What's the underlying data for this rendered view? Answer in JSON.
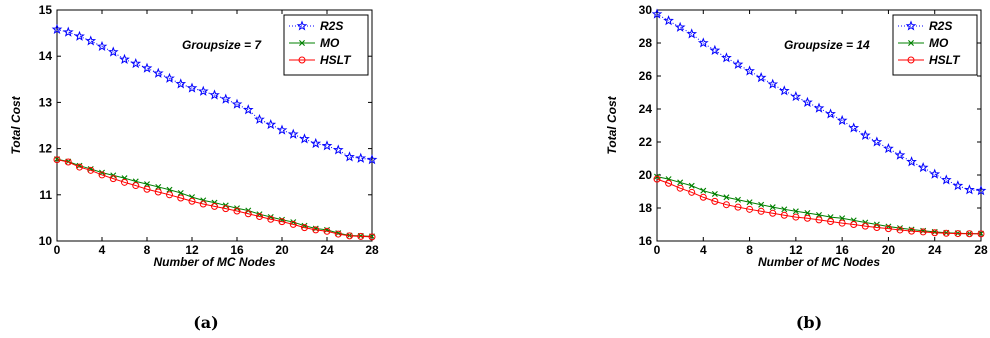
{
  "chart_data": [
    {
      "type": "line",
      "caption": "(a)",
      "annotation": "Groupsize = 7",
      "xlabel": "Number of MC Nodes",
      "ylabel": "Total Cost",
      "xlim": [
        0,
        28
      ],
      "ylim": [
        10,
        15
      ],
      "xticks": [
        0,
        4,
        8,
        12,
        16,
        20,
        24,
        28
      ],
      "yticks": [
        10,
        11,
        12,
        13,
        14,
        15
      ],
      "legend_position": "top-right",
      "x": [
        0,
        1,
        2,
        3,
        4,
        5,
        6,
        7,
        8,
        9,
        10,
        11,
        12,
        13,
        14,
        15,
        16,
        17,
        18,
        19,
        20,
        21,
        22,
        23,
        24,
        25,
        26,
        27,
        28
      ],
      "series": [
        {
          "name": "R2S",
          "color": "#0000ff",
          "style": "dotted",
          "marker": "star",
          "values": [
            14.58,
            14.52,
            14.43,
            14.33,
            14.21,
            14.09,
            13.93,
            13.84,
            13.74,
            13.63,
            13.52,
            13.4,
            13.31,
            13.24,
            13.16,
            13.07,
            12.96,
            12.84,
            12.63,
            12.52,
            12.4,
            12.31,
            12.21,
            12.11,
            12.06,
            11.97,
            11.82,
            11.79,
            11.76
          ]
        },
        {
          "name": "MO",
          "color": "#008000",
          "style": "solid",
          "marker": "x",
          "values": [
            11.77,
            11.72,
            11.63,
            11.56,
            11.48,
            11.42,
            11.36,
            11.29,
            11.23,
            11.17,
            11.11,
            11.04,
            10.95,
            10.88,
            10.83,
            10.77,
            10.71,
            10.66,
            10.58,
            10.52,
            10.46,
            10.41,
            10.33,
            10.27,
            10.24,
            10.17,
            10.12,
            10.11,
            10.1
          ]
        },
        {
          "name": "HSLT",
          "color": "#ff0000",
          "style": "solid",
          "marker": "circle",
          "values": [
            11.76,
            11.71,
            11.6,
            11.53,
            11.43,
            11.35,
            11.27,
            11.2,
            11.12,
            11.06,
            11.0,
            10.93,
            10.86,
            10.8,
            10.75,
            10.7,
            10.65,
            10.59,
            10.53,
            10.47,
            10.42,
            10.36,
            10.29,
            10.24,
            10.21,
            10.15,
            10.11,
            10.1,
            10.09
          ]
        }
      ]
    },
    {
      "type": "line",
      "caption": "(b)",
      "annotation": "Groupsize = 14",
      "xlabel": "Number of MC Nodes",
      "ylabel": "Total Cost",
      "xlim": [
        0,
        28
      ],
      "ylim": [
        16,
        30
      ],
      "xticks": [
        0,
        4,
        8,
        12,
        16,
        20,
        24,
        28
      ],
      "yticks": [
        16,
        18,
        20,
        22,
        24,
        26,
        28,
        30
      ],
      "legend_position": "top-right",
      "x": [
        0,
        1,
        2,
        3,
        4,
        5,
        6,
        7,
        8,
        9,
        10,
        11,
        12,
        13,
        14,
        15,
        16,
        17,
        18,
        19,
        20,
        21,
        22,
        23,
        24,
        25,
        26,
        27,
        28
      ],
      "series": [
        {
          "name": "R2S",
          "color": "#0000ff",
          "style": "dotted",
          "marker": "star",
          "values": [
            29.75,
            29.35,
            28.95,
            28.55,
            28.0,
            27.55,
            27.1,
            26.7,
            26.3,
            25.9,
            25.5,
            25.1,
            24.75,
            24.4,
            24.05,
            23.7,
            23.3,
            22.85,
            22.4,
            22.0,
            21.6,
            21.2,
            20.8,
            20.45,
            20.05,
            19.7,
            19.35,
            19.1,
            19.05
          ]
        },
        {
          "name": "MO",
          "color": "#008000",
          "style": "solid",
          "marker": "x",
          "values": [
            19.9,
            19.75,
            19.55,
            19.35,
            19.05,
            18.85,
            18.65,
            18.5,
            18.35,
            18.2,
            18.05,
            17.92,
            17.8,
            17.7,
            17.58,
            17.45,
            17.38,
            17.25,
            17.12,
            17.0,
            16.88,
            16.78,
            16.7,
            16.62,
            16.55,
            16.5,
            16.47,
            16.45,
            16.45
          ]
        },
        {
          "name": "HSLT",
          "color": "#ff0000",
          "style": "solid",
          "marker": "circle",
          "values": [
            19.75,
            19.5,
            19.2,
            18.95,
            18.65,
            18.4,
            18.2,
            18.05,
            17.92,
            17.8,
            17.68,
            17.56,
            17.45,
            17.38,
            17.28,
            17.18,
            17.08,
            17.0,
            16.9,
            16.82,
            16.75,
            16.67,
            16.6,
            16.55,
            16.5,
            16.47,
            16.45,
            16.44,
            16.43
          ]
        }
      ]
    }
  ]
}
